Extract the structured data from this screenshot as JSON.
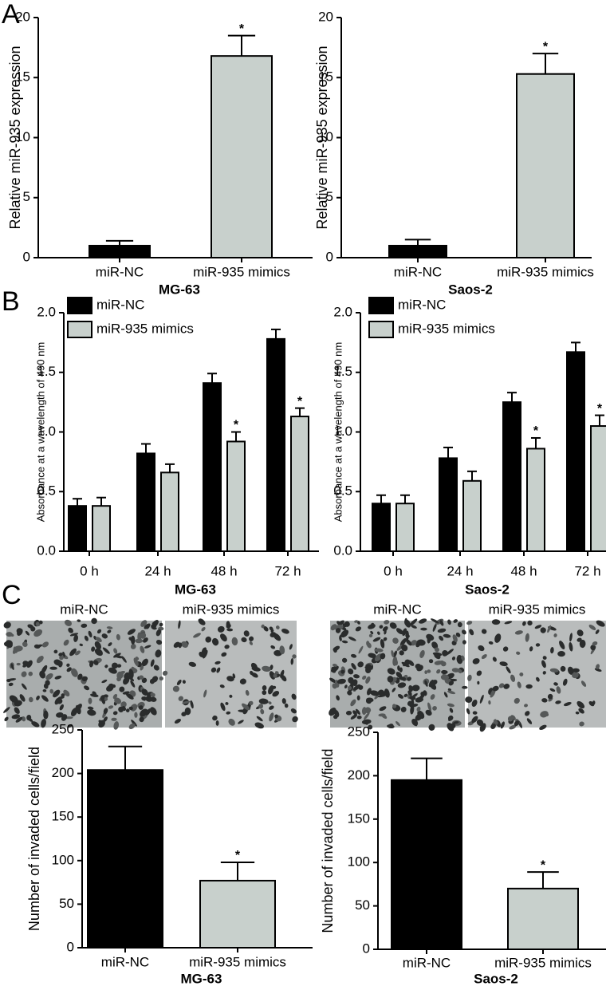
{
  "panels": [
    "A",
    "B",
    "C"
  ],
  "micrographs": [
    {
      "labels": [
        "miR-NC",
        "miR-935 mimics"
      ]
    },
    {
      "labels": [
        "miR-NC",
        "miR-935 mimics"
      ]
    }
  ],
  "chart_data": [
    {
      "type": "bar",
      "ylabel": "Relative miR-935 expression",
      "xlabel": "MG-63",
      "categories": [
        "miR-NC",
        "miR-935 mimics"
      ],
      "values": [
        1.0,
        16.8
      ],
      "errors": [
        0.4,
        1.7
      ],
      "colors": [
        "#000000",
        "#c8d0cc"
      ],
      "ylim": [
        0,
        20
      ],
      "yticks": [
        0,
        5,
        10,
        15,
        20
      ],
      "annotations": [
        {
          "category": "miR-935 mimics",
          "text": "*"
        }
      ]
    },
    {
      "type": "bar",
      "ylabel": "Relative miR-935 expression",
      "xlabel": "Saos-2",
      "categories": [
        "miR-NC",
        "miR-935 mimics"
      ],
      "values": [
        1.0,
        15.3
      ],
      "errors": [
        0.5,
        1.7
      ],
      "colors": [
        "#000000",
        "#c8d0cc"
      ],
      "ylim": [
        0,
        20
      ],
      "yticks": [
        0,
        5,
        10,
        15,
        20
      ],
      "annotations": [
        {
          "category": "miR-935 mimics",
          "text": "*"
        }
      ]
    },
    {
      "type": "grouped_bar",
      "ylabel": "Absorbance at a wavelength of 490 nm",
      "xlabel": "MG-63",
      "categories": [
        "0 h",
        "24 h",
        "48 h",
        "72 h"
      ],
      "series": [
        {
          "name": "miR-NC",
          "color": "#000000",
          "values": [
            0.38,
            0.82,
            1.41,
            1.78
          ],
          "errors": [
            0.06,
            0.08,
            0.08,
            0.08
          ]
        },
        {
          "name": "miR-935 mimics",
          "color": "#c8d0cc",
          "values": [
            0.38,
            0.66,
            0.92,
            1.13
          ],
          "errors": [
            0.07,
            0.07,
            0.08,
            0.07
          ]
        }
      ],
      "ylim": [
        0,
        2.0
      ],
      "yticks": [
        {
          "value": 0,
          "label": "0.0"
        },
        {
          "value": 0.5,
          "label": "0.5"
        },
        {
          "value": 1,
          "label": "1.0"
        },
        {
          "value": 1.5,
          "label": "1.5"
        },
        {
          "value": 2,
          "label": "2.0"
        }
      ],
      "legend": "upper left",
      "annotations": [
        {
          "series": "miR-935 mimics",
          "category": "48 h",
          "text": "*"
        },
        {
          "series": "miR-935 mimics",
          "category": "72 h",
          "text": "*"
        }
      ]
    },
    {
      "type": "grouped_bar",
      "ylabel": "Absorbance at a wavelength of 490 nm",
      "xlabel": "Saos-2",
      "categories": [
        "0 h",
        "24 h",
        "48 h",
        "72 h"
      ],
      "series": [
        {
          "name": "miR-NC",
          "color": "#000000",
          "values": [
            0.4,
            0.78,
            1.25,
            1.67
          ],
          "errors": [
            0.07,
            0.09,
            0.08,
            0.08
          ]
        },
        {
          "name": "miR-935 mimics",
          "color": "#c8d0cc",
          "values": [
            0.4,
            0.59,
            0.86,
            1.05
          ],
          "errors": [
            0.07,
            0.08,
            0.09,
            0.09
          ]
        }
      ],
      "ylim": [
        0,
        2.0
      ],
      "yticks": [
        {
          "value": 0,
          "label": "0.0"
        },
        {
          "value": 0.5,
          "label": "0.5"
        },
        {
          "value": 1,
          "label": "1.0"
        },
        {
          "value": 1.5,
          "label": "1.5"
        },
        {
          "value": 2,
          "label": "2.0"
        }
      ],
      "legend": "upper left",
      "annotations": [
        {
          "series": "miR-935 mimics",
          "category": "48 h",
          "text": "*"
        },
        {
          "series": "miR-935 mimics",
          "category": "72 h",
          "text": "*"
        }
      ]
    },
    {
      "type": "bar",
      "ylabel": "Number of invaded cells/field",
      "xlabel": "MG-63",
      "categories": [
        "miR-NC",
        "miR-935 mimics"
      ],
      "values": [
        204,
        77
      ],
      "errors": [
        27,
        21
      ],
      "colors": [
        "#000000",
        "#c8d0cc"
      ],
      "ylim": [
        0,
        250
      ],
      "yticks": [
        0,
        50,
        100,
        150,
        200,
        250
      ],
      "annotations": [
        {
          "category": "miR-935 mimics",
          "text": "*"
        }
      ]
    },
    {
      "type": "bar",
      "ylabel": "Number of invaded cells/field",
      "xlabel": "Saos-2",
      "categories": [
        "miR-NC",
        "miR-935 mimics"
      ],
      "values": [
        195,
        70
      ],
      "errors": [
        25,
        19
      ],
      "colors": [
        "#000000",
        "#c8d0cc"
      ],
      "ylim": [
        0,
        250
      ],
      "yticks": [
        0,
        50,
        100,
        150,
        200,
        250
      ],
      "annotations": [
        {
          "category": "miR-935 mimics",
          "text": "*"
        }
      ]
    }
  ]
}
